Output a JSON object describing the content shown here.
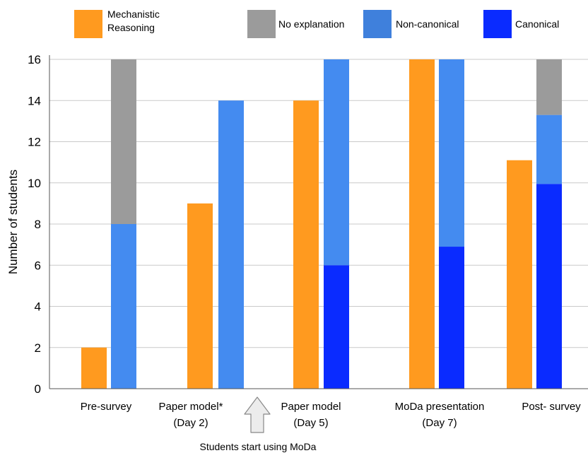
{
  "chart_data": {
    "type": "bar",
    "ylabel": "Number of students",
    "ylim": [
      0,
      16
    ],
    "yticks": [
      0,
      2,
      4,
      6,
      8,
      10,
      12,
      14,
      16
    ],
    "grid": true,
    "legend_placement": "top",
    "legend": [
      {
        "label": "Mechanistic\nReasoning",
        "color": "#FF9A1F"
      },
      {
        "label": "No explanation",
        "color": "#9B9B9B"
      },
      {
        "label": "Non-canonical",
        "color": "#3F80DC"
      },
      {
        "label": "Canonical",
        "color": "#0A2BFF"
      }
    ],
    "colors": {
      "mechanistic": "#FF9A1F",
      "no_explanation": "#9B9B9B",
      "non_canonical": "#448BF0",
      "canonical": "#0A2BFF"
    },
    "categories": [
      {
        "label": "Pre-survey",
        "sublabel": "",
        "mechanistic": 2,
        "canonical": 0,
        "non_canonical": 8,
        "no_explanation": 8
      },
      {
        "label": "Paper model*",
        "sublabel": "(Day 2)",
        "mechanistic": 9,
        "canonical": 0,
        "non_canonical": 14,
        "no_explanation": 0
      },
      {
        "label": "Paper model",
        "sublabel": "(Day 5)",
        "mechanistic": 14,
        "canonical": 6,
        "non_canonical": 10,
        "no_explanation": 0
      },
      {
        "label": "MoDa presentation",
        "sublabel": "(Day 7)",
        "mechanistic": 16,
        "canonical": 6.9,
        "non_canonical": 9.1,
        "no_explanation": 0
      },
      {
        "label": "Post- survey",
        "sublabel": "",
        "mechanistic": 11.1,
        "canonical": 9.95,
        "non_canonical": 3.35,
        "no_explanation": 2.7
      }
    ],
    "annotation": "Students start using MoDa"
  }
}
